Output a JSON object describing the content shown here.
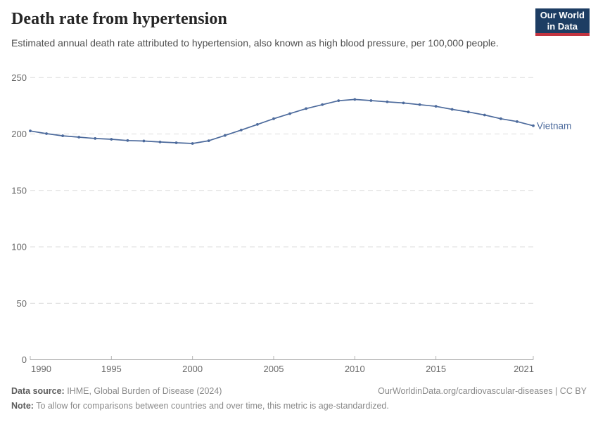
{
  "header": {
    "title": "Death rate from hypertension",
    "subtitle": "Estimated annual death rate attributed to hypertension, also known as high blood pressure, per 100,000 people.",
    "logo": {
      "line1": "Our World",
      "line2": "in Data",
      "bg_color": "#1d3d63",
      "bar_color": "#c23440"
    }
  },
  "chart_data": {
    "type": "line",
    "title": "Death rate from hypertension",
    "xlabel": "",
    "ylabel": "",
    "x": [
      1990,
      1991,
      1992,
      1993,
      1994,
      1995,
      1996,
      1997,
      1998,
      1999,
      2000,
      2001,
      2002,
      2003,
      2004,
      2005,
      2006,
      2007,
      2008,
      2009,
      2010,
      2011,
      2012,
      2013,
      2014,
      2015,
      2016,
      2017,
      2018,
      2019,
      2020,
      2021
    ],
    "series": [
      {
        "name": "Vietnam",
        "color": "#4c6a9c",
        "values": [
          202.7,
          200.3,
          198.4,
          197.2,
          196.0,
          195.3,
          194.2,
          193.8,
          192.9,
          192.2,
          191.6,
          194.0,
          198.7,
          203.5,
          208.5,
          213.5,
          218.0,
          222.5,
          226.0,
          229.5,
          230.6,
          229.6,
          228.5,
          227.5,
          226.0,
          224.5,
          221.8,
          219.5,
          216.8,
          213.5,
          211.0,
          207.3
        ]
      }
    ],
    "ylim": [
      0,
      250
    ],
    "yticks": [
      0,
      50,
      100,
      150,
      200,
      250
    ],
    "xticks": [
      1990,
      1995,
      2000,
      2005,
      2010,
      2015,
      2021
    ],
    "grid": "horizontal-dashed",
    "legend_position": "end-of-line-label",
    "axis_color": "#a3a3a3",
    "grid_color": "#dcdcdc",
    "tick_label_color": "#696969",
    "marker": "dot"
  },
  "footer": {
    "datasource_label": "Data source:",
    "datasource_value": "IHME, Global Burden of Disease (2024)",
    "link": "OurWorldinData.org/cardiovascular-diseases | CC BY",
    "note_label": "Note:",
    "note_value": "To allow for comparisons between countries and over time, this metric is age-standardized."
  }
}
